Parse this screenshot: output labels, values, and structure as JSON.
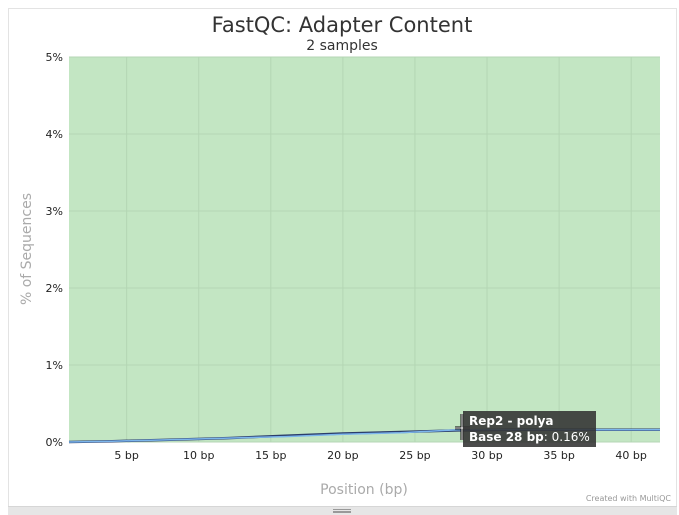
{
  "chart_data": {
    "type": "area",
    "title": "FastQC: Adapter Content",
    "subtitle": "2 samples",
    "xlabel": "Position (bp)",
    "ylabel": "% of Sequences",
    "xlim": [
      1,
      42
    ],
    "ylim": [
      0,
      5
    ],
    "x_ticks": [
      {
        "value": 5,
        "label": "5 bp"
      },
      {
        "value": 10,
        "label": "10 bp"
      },
      {
        "value": 15,
        "label": "15 bp"
      },
      {
        "value": 20,
        "label": "20 bp"
      },
      {
        "value": 25,
        "label": "25 bp"
      },
      {
        "value": 30,
        "label": "30 bp"
      },
      {
        "value": 35,
        "label": "35 bp"
      },
      {
        "value": 40,
        "label": "40 bp"
      }
    ],
    "y_ticks": [
      {
        "value": 0,
        "label": "0%"
      },
      {
        "value": 1,
        "label": "1%"
      },
      {
        "value": 2,
        "label": "2%"
      },
      {
        "value": 3,
        "label": "3%"
      },
      {
        "value": 4,
        "label": "4%"
      },
      {
        "value": 5,
        "label": "5%"
      }
    ],
    "grid": true,
    "background_band": {
      "from": 0,
      "to": 5,
      "color": "#c3e6c3"
    },
    "series": [
      {
        "color": "#2b3d6b",
        "x": [
          1,
          4,
          8,
          12,
          16,
          20,
          24,
          28,
          32,
          36,
          42
        ],
        "y": [
          0.0,
          0.01,
          0.03,
          0.05,
          0.08,
          0.11,
          0.13,
          0.15,
          0.16,
          0.16,
          0.16
        ]
      },
      {
        "name": "Rep2 - polya",
        "color": "#7cb5ec",
        "x": [
          1,
          4,
          8,
          12,
          16,
          20,
          24,
          28,
          32,
          36,
          42
        ],
        "y": [
          0.0,
          0.01,
          0.03,
          0.05,
          0.07,
          0.1,
          0.12,
          0.16,
          0.16,
          0.16,
          0.16
        ]
      }
    ]
  },
  "tooltip": {
    "series_name": "Rep2 - polya",
    "position_label": "Base 28 bp",
    "value_text": ": 0.16%"
  },
  "credit": "Created with MultiQC"
}
